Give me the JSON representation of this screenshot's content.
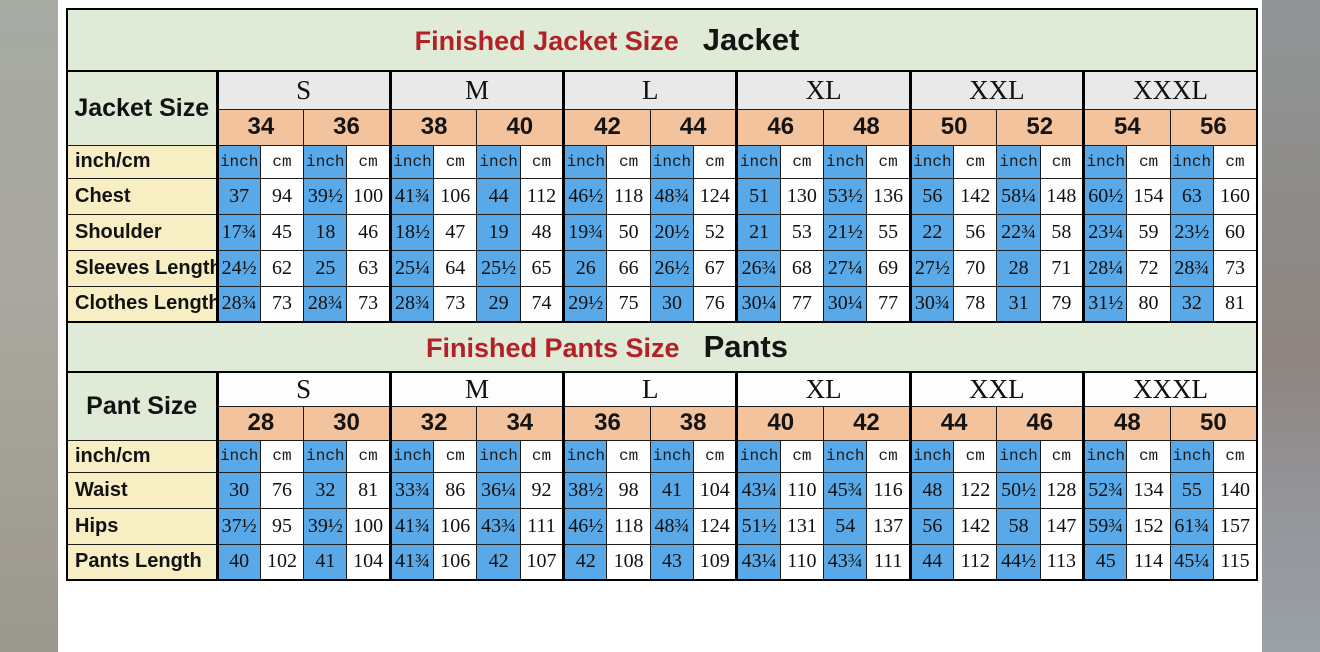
{
  "colors": {
    "title_red": "#b32025",
    "title_black": "#141414",
    "green_bg": "#dfebd7",
    "orange_bg": "#f3c39d",
    "yellow_bg": "#f8eec3",
    "blue_bg": "#59a9e8",
    "jacket_letter_row_bg": "#e9e9e9",
    "pants_letter_row_bg": "#fdfdfd",
    "left_band_gray": "#a7aba4",
    "right_band_gray": "#8f8b87"
  },
  "chart_data": [
    {
      "type": "table",
      "title_red": "Finished Jacket Size",
      "title_black": "Jacket",
      "corner_label": "Jacket Size",
      "letter_row_bg": "#e9e9e9",
      "letters": [
        "S",
        "M",
        "L",
        "XL",
        "XXL",
        "XXXL"
      ],
      "sizes": [
        "34",
        "36",
        "38",
        "40",
        "42",
        "44",
        "46",
        "48",
        "50",
        "52",
        "54",
        "56"
      ],
      "unit_label": "inch/cm",
      "units": [
        "inch",
        "cm"
      ],
      "rows": [
        {
          "label": "Chest",
          "values": [
            "37",
            "94",
            "39½",
            "100",
            "41¾",
            "106",
            "44",
            "112",
            "46½",
            "118",
            "48¾",
            "124",
            "51",
            "130",
            "53½",
            "136",
            "56",
            "142",
            "58¼",
            "148",
            "60½",
            "154",
            "63",
            "160"
          ]
        },
        {
          "label": "Shoulder",
          "values": [
            "17¾",
            "45",
            "18",
            "46",
            "18½",
            "47",
            "19",
            "48",
            "19¾",
            "50",
            "20½",
            "52",
            "21",
            "53",
            "21½",
            "55",
            "22",
            "56",
            "22¾",
            "58",
            "23¼",
            "59",
            "23½",
            "60"
          ]
        },
        {
          "label": "Sleeves Length",
          "values": [
            "24½",
            "62",
            "25",
            "63",
            "25¼",
            "64",
            "25½",
            "65",
            "26",
            "66",
            "26½",
            "67",
            "26¾",
            "68",
            "27¼",
            "69",
            "27½",
            "70",
            "28",
            "71",
            "28¼",
            "72",
            "28¾",
            "73"
          ]
        },
        {
          "label": "Clothes Length",
          "values": [
            "28¾",
            "73",
            "28¾",
            "73",
            "28¾",
            "73",
            "29",
            "74",
            "29½",
            "75",
            "30",
            "76",
            "30¼",
            "77",
            "30¼",
            "77",
            "30¾",
            "78",
            "31",
            "79",
            "31½",
            "80",
            "32",
            "81"
          ]
        }
      ]
    },
    {
      "type": "table",
      "title_red": "Finished Pants Size",
      "title_black": "Pants",
      "corner_label": "Pant Size",
      "letter_row_bg": "#fdfdfd",
      "letters": [
        "S",
        "M",
        "L",
        "XL",
        "XXL",
        "XXXL"
      ],
      "sizes": [
        "28",
        "30",
        "32",
        "34",
        "36",
        "38",
        "40",
        "42",
        "44",
        "46",
        "48",
        "50"
      ],
      "unit_label": "inch/cm",
      "units": [
        "inch",
        "cm"
      ],
      "rows": [
        {
          "label": "Waist",
          "values": [
            "30",
            "76",
            "32",
            "81",
            "33¾",
            "86",
            "36¼",
            "92",
            "38½",
            "98",
            "41",
            "104",
            "43¼",
            "110",
            "45¾",
            "116",
            "48",
            "122",
            "50½",
            "128",
            "52¾",
            "134",
            "55",
            "140"
          ]
        },
        {
          "label": "Hips",
          "values": [
            "37½",
            "95",
            "39½",
            "100",
            "41¾",
            "106",
            "43¾",
            "111",
            "46½",
            "118",
            "48¾",
            "124",
            "51½",
            "131",
            "54",
            "137",
            "56",
            "142",
            "58",
            "147",
            "59¾",
            "152",
            "61¾",
            "157"
          ]
        },
        {
          "label": "Pants Length",
          "values": [
            "40",
            "102",
            "41",
            "104",
            "41¾",
            "106",
            "42",
            "107",
            "42",
            "108",
            "43",
            "109",
            "43¼",
            "110",
            "43¾",
            "111",
            "44",
            "112",
            "44½",
            "113",
            "45",
            "114",
            "45¼",
            "115"
          ]
        }
      ]
    }
  ]
}
